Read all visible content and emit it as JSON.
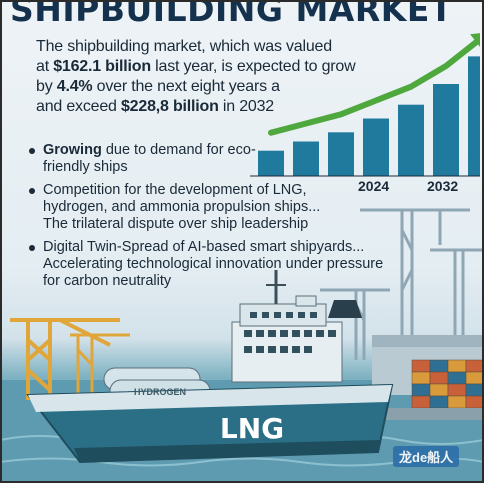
{
  "title": "SHIPBUILDING MARKET",
  "intro": {
    "line1_pre": "The shipbuilding market, which was valued",
    "line2_pre": "at ",
    "value_now": "$162.1 billion",
    "line2_post": " last year, is expected to grow",
    "line3_pre": "by ",
    "growth": "4.4%",
    "line3_post": " over the next eight years a",
    "line4_pre": "and exceed ",
    "value_future": "$228,8 billion",
    "line4_post": " in 2032"
  },
  "bullets": [
    {
      "first": "Growing",
      "rest": " due to demand for eco-friendly ships"
    },
    {
      "first": "Competition for the development of LNG, hydrogen, and ammonia propulsion ships...",
      "rest": " The trilateral dispute over ship leadership"
    },
    {
      "first": "Digital Twin-Spread of AI-based smart shipyards...",
      "rest": " Accelerating technological innovation under pressure for carbon neutrality"
    }
  ],
  "chart_data": {
    "type": "bar",
    "categories": [
      "",
      "",
      "",
      "",
      "",
      "2024",
      "2032"
    ],
    "tick_labels": [
      "2024",
      "2032"
    ],
    "values": [
      1.1,
      1.5,
      1.9,
      2.5,
      3.1,
      4.0,
      5.2
    ],
    "ylim": [
      0,
      6
    ],
    "title": "",
    "xlabel": "",
    "ylabel": "",
    "trend_arrow": true,
    "colors": {
      "bar": "#1f7a9e",
      "arrow": "#4fa83d"
    }
  },
  "ship": {
    "hull_text": "LNG",
    "tank_text": "HYDROGEN"
  },
  "watermark": "龙de船人",
  "colors": {
    "title": "#14314d",
    "hull": "#2b6f86",
    "deck": "#d8e5ea",
    "crane_yellow": "#e0a63a",
    "crane_grey": "#8fa7b5"
  }
}
